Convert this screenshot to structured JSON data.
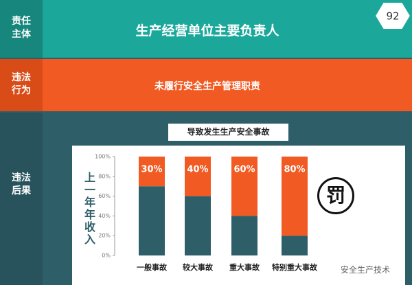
{
  "header": {
    "badge": "92"
  },
  "rows": [
    {
      "label": "责任主体",
      "text": "生产经营单位主要负责人"
    },
    {
      "label": "违法行为",
      "text": "未履行安全生产管理职责"
    },
    {
      "label": "违法后果",
      "text": "导致发生生产安全事故"
    }
  ],
  "chart_data": {
    "type": "bar",
    "stacked": true,
    "grid": false,
    "y_label": "上一年年收入",
    "annotation": "罚",
    "categories": [
      "一般事故",
      "较大事故",
      "重大事故",
      "特别重大事故"
    ],
    "series": [
      {
        "color": "#2e5e68",
        "values": [
          70,
          60,
          40,
          20
        ]
      },
      {
        "color": "#f15a22",
        "values": [
          30,
          40,
          60,
          80
        ],
        "value_labels": [
          "30%",
          "40%",
          "60%",
          "80%"
        ]
      }
    ],
    "ylim": [
      0,
      100
    ],
    "yticks": [
      {
        "value": 0,
        "label": "0%"
      },
      {
        "value": 20,
        "label": "20%"
      },
      {
        "value": 40,
        "label": "40%"
      },
      {
        "value": 60,
        "label": "60%"
      },
      {
        "value": 80,
        "label": "80%"
      },
      {
        "value": 100,
        "label": "100%"
      }
    ]
  },
  "watermark": "安全生产技术"
}
